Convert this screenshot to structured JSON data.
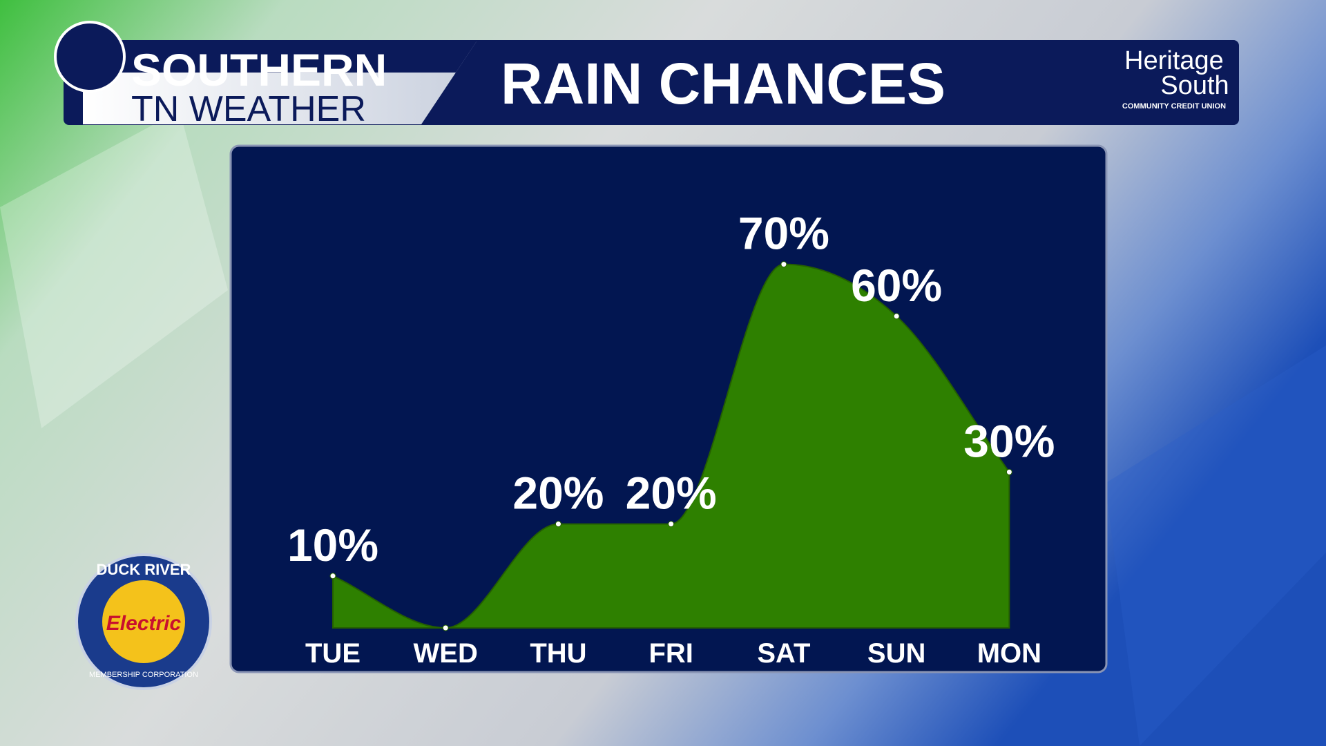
{
  "header": {
    "brand_line1": "SOUTHERN",
    "brand_line2": "TN WEATHER",
    "sponsor_line1": "Heritage",
    "sponsor_line2": "South",
    "sponsor_line3": "COMMUNITY CREDIT UNION"
  },
  "badge": {
    "top": "DUCK RIVER",
    "middle": "Electric",
    "bottom": "MEMBERSHIP CORPORATION"
  },
  "chart_data": {
    "type": "area",
    "title": "RAIN CHANCES",
    "categories": [
      "TUE",
      "WED",
      "THU",
      "FRI",
      "SAT",
      "SUN",
      "MON"
    ],
    "values": [
      10,
      0,
      20,
      20,
      70,
      60,
      30
    ],
    "value_labels": [
      "10%",
      null,
      "20%",
      "20%",
      "70%",
      "60%",
      "30%"
    ],
    "color": "#2e8000",
    "ylim": [
      0,
      100
    ]
  }
}
